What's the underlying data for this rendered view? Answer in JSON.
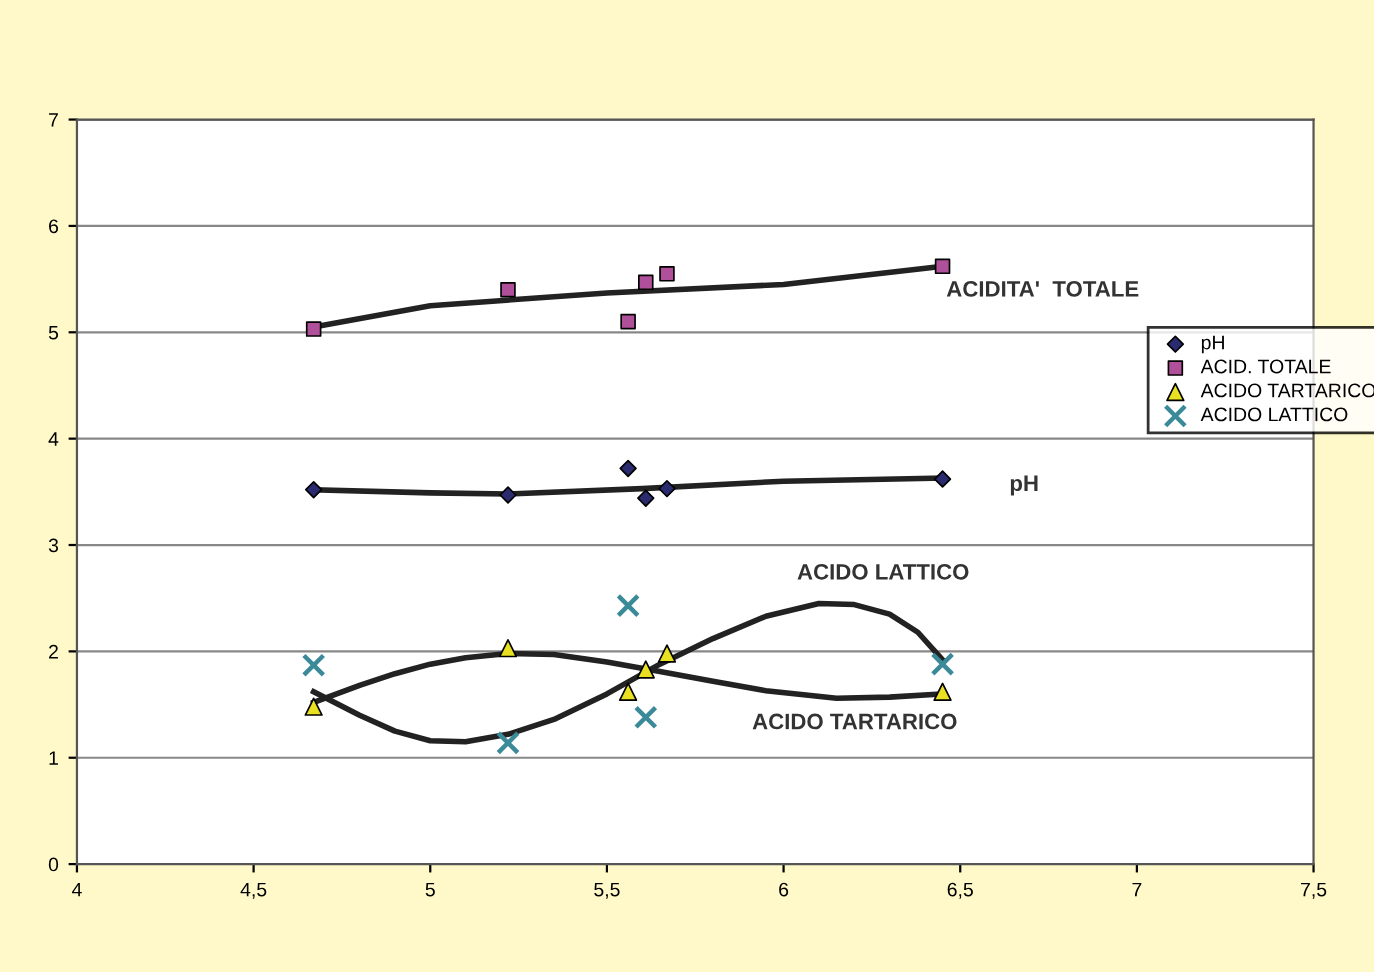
{
  "chart_data": {
    "type": "scatter",
    "xlim": [
      4,
      7.5
    ],
    "ylim": [
      0,
      7
    ],
    "xticks": [
      4,
      {
        "value": 4.5,
        "label": "4,5"
      },
      5,
      {
        "value": 5.5,
        "label": "5,5"
      },
      6,
      {
        "value": 6.5,
        "label": "6,5"
      },
      7,
      {
        "value": 7.5,
        "label": "7,5"
      }
    ],
    "yticks": [
      0,
      1,
      2,
      3,
      4,
      5,
      6,
      7
    ],
    "grid": "y",
    "legend": "right",
    "series": [
      {
        "name": "pH",
        "color": "#2a2a6e",
        "marker": "diamond",
        "x": [
          4.67,
          5.22,
          5.56,
          5.61,
          5.67,
          6.45
        ],
        "values": [
          3.52,
          3.47,
          3.72,
          3.44,
          3.53,
          3.62
        ]
      },
      {
        "name": "ACID. TOTALE",
        "color": "#b0509a",
        "marker": "square",
        "x": [
          4.67,
          5.22,
          5.56,
          5.61,
          5.67,
          6.45
        ],
        "values": [
          5.03,
          5.4,
          5.1,
          5.47,
          5.55,
          5.62
        ]
      },
      {
        "name": "ACIDO TARTARICO",
        "color": "#e8e020",
        "marker": "triangle",
        "x": [
          4.67,
          5.22,
          5.56,
          5.61,
          5.67,
          6.45
        ],
        "values": [
          1.48,
          2.03,
          1.62,
          1.83,
          1.98,
          1.62
        ]
      },
      {
        "name": "ACIDO LATTICO",
        "color": "#3a8a9a",
        "marker": "cross",
        "x": [
          4.67,
          5.22,
          5.56,
          5.61,
          6.45
        ],
        "values": [
          1.87,
          1.14,
          2.43,
          1.38,
          1.88
        ]
      },
      {
        "type": "line",
        "color": "#222222",
        "marker": "none",
        "x": [
          4.67,
          5.0,
          5.5,
          6.0,
          6.45
        ],
        "values": [
          5.05,
          5.25,
          5.37,
          5.45,
          5.62
        ]
      },
      {
        "type": "line",
        "color": "#222222",
        "marker": "none",
        "x": [
          4.67,
          5.0,
          5.22,
          5.6,
          6.0,
          6.45
        ],
        "values": [
          3.52,
          3.49,
          3.48,
          3.53,
          3.6,
          3.63
        ]
      },
      {
        "type": "line",
        "color": "#222222",
        "marker": "none",
        "x": [
          4.67,
          4.8,
          4.9,
          5.0,
          5.1,
          5.22,
          5.35,
          5.5,
          5.65,
          5.8,
          5.95,
          6.15,
          6.3,
          6.45
        ],
        "values": [
          1.52,
          1.68,
          1.79,
          1.88,
          1.94,
          1.98,
          1.97,
          1.9,
          1.81,
          1.72,
          1.63,
          1.56,
          1.57,
          1.6
        ]
      },
      {
        "type": "line",
        "color": "#222222",
        "marker": "none",
        "x": [
          4.67,
          4.8,
          4.9,
          5.0,
          5.1,
          5.22,
          5.35,
          5.5,
          5.65,
          5.8,
          5.95,
          6.1,
          6.2,
          6.3,
          6.38,
          6.45
        ],
        "values": [
          1.62,
          1.4,
          1.25,
          1.16,
          1.15,
          1.22,
          1.36,
          1.6,
          1.88,
          2.12,
          2.33,
          2.45,
          2.44,
          2.35,
          2.18,
          1.92
        ]
      }
    ],
    "annotations": [
      "ACIDITA'  TOTALE",
      "pH",
      "ACIDO LATTICO",
      "ACIDO TARTARICO"
    ]
  }
}
